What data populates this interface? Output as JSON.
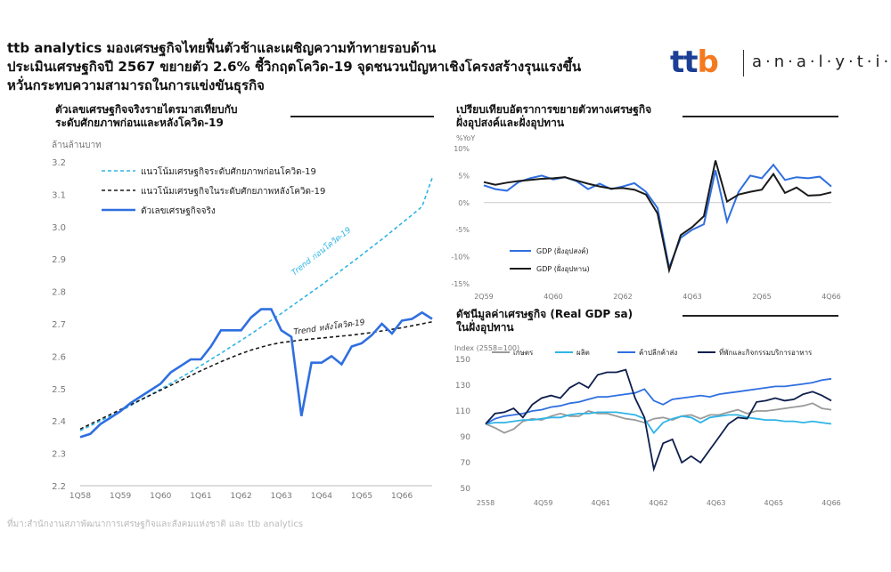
{
  "header": {
    "title_lines": [
      "ttb analytics มองเศรษฐกิจไทยฟื้นตัวช้าและเผชิญความท้าทายรอบด้าน",
      "ประเมินเศรษฐกิจปี 2567 ขยายตัว 2.6% ชี้วิกฤตโควิด-19 จุดชนวนปัญหาเชิงโครงสร้างรุนแรงขึ้น",
      "หวั่นกระทบความสามารถในการแข่งขันธุรกิจ"
    ]
  },
  "logo": {
    "mark": "ttb",
    "word": "analytics"
  },
  "source": "ที่มา:สำนักงานสภาพัฒนาการเศรษฐกิจและสังคมแห่งชาติ และ ttb analytics",
  "colors": {
    "blue": "#2f6fe0",
    "light_blue": "#2fb4e6",
    "black": "#1a1a1a",
    "navy": "#0e1f4d",
    "gray": "#9a9a9a"
  },
  "chart_data": [
    {
      "type": "line",
      "title": "ตัวเลขเศรษฐกิจจริงรายไตรมาสเทียบกับ ระดับศักยภาพก่อนและหลังโควิด-19",
      "title_lines": [
        "ตัวเลขเศรษฐกิจจริงรายไตรมาสเทียบกับ",
        "ระดับศักยภาพก่อนและหลังโควิด-19"
      ],
      "ylabel": "ล้านล้านบาท",
      "ylim": [
        2.2,
        3.2
      ],
      "y_ticks": [
        "3.2",
        "3.1",
        "3.0",
        "2.9",
        "2.8",
        "2.7",
        "2.6",
        "2.5",
        "2.4",
        "2.3",
        "2.2"
      ],
      "x_ticks": [
        "1Q58",
        "1Q59",
        "1Q60",
        "1Q61",
        "1Q62",
        "1Q63",
        "1Q64",
        "1Q65",
        "1Q66"
      ],
      "x": [
        "1Q58",
        "2Q58",
        "3Q58",
        "4Q58",
        "1Q59",
        "2Q59",
        "3Q59",
        "4Q59",
        "1Q60",
        "2Q60",
        "3Q60",
        "4Q60",
        "1Q61",
        "2Q61",
        "3Q61",
        "4Q61",
        "1Q62",
        "2Q62",
        "3Q62",
        "4Q62",
        "1Q63",
        "2Q63",
        "3Q63",
        "4Q63",
        "1Q64",
        "2Q64",
        "3Q64",
        "4Q64",
        "1Q65",
        "2Q65",
        "3Q65",
        "4Q65",
        "1Q66",
        "2Q66",
        "3Q66",
        "4Q66"
      ],
      "legend_position": "top-left",
      "series": [
        {
          "name": "แนวโน้มเศรษฐกิจระดับศักยภาพก่อนโควิด-19",
          "style": "dashed",
          "color": "#2fb4e6",
          "values": [
            2.37,
            2.385,
            2.4,
            2.415,
            2.43,
            2.447,
            2.464,
            2.481,
            2.498,
            2.516,
            2.534,
            2.552,
            2.571,
            2.59,
            2.609,
            2.629,
            2.649,
            2.669,
            2.69,
            2.711,
            2.732,
            2.754,
            2.776,
            2.798,
            2.82,
            2.843,
            2.866,
            2.889,
            2.913,
            2.937,
            2.961,
            2.986,
            3.011,
            3.036,
            3.062,
            3.15
          ]
        },
        {
          "name": "แนวโน้มเศรษฐกิจในระดับศักยภาพหลังโควิด-19",
          "style": "dashed",
          "color": "#1a1a1a",
          "values": [
            2.375,
            2.39,
            2.405,
            2.42,
            2.435,
            2.45,
            2.465,
            2.48,
            2.495,
            2.51,
            2.525,
            2.54,
            2.555,
            2.569,
            2.583,
            2.596,
            2.608,
            2.619,
            2.628,
            2.636,
            2.642,
            2.646,
            2.65,
            2.653,
            2.656,
            2.659,
            2.662,
            2.665,
            2.669,
            2.673,
            2.678,
            2.683,
            2.688,
            2.694,
            2.7,
            2.706
          ]
        },
        {
          "name": "ตัวเลขเศรษฐกิจจริง",
          "style": "solid",
          "color": "#2f6fe0",
          "values": [
            2.35,
            2.36,
            2.39,
            2.41,
            2.43,
            2.455,
            2.475,
            2.495,
            2.515,
            2.55,
            2.57,
            2.59,
            2.59,
            2.63,
            2.68,
            2.68,
            2.68,
            2.72,
            2.745,
            2.745,
            2.68,
            2.66,
            2.415,
            2.58,
            2.58,
            2.6,
            2.575,
            2.63,
            2.64,
            2.665,
            2.7,
            2.67,
            2.71,
            2.715,
            2.735,
            2.715
          ]
        }
      ],
      "annotations": [
        "Trend ก่อนโควิด-19",
        "Trend หลังโควิด-19"
      ]
    },
    {
      "type": "line",
      "title_lines": [
        "เปรียบเทียบอัตราการขยายตัวทางเศรษฐกิจ",
        "ฝั่งอุปสงค์และฝั่งอุปทาน"
      ],
      "ylabel": "%YoY",
      "ylim": [
        -15,
        10
      ],
      "y_ticks": [
        "10%",
        "5%",
        "0%",
        "-5%",
        "-10%",
        "-15%"
      ],
      "x_ticks": [
        "2Q59",
        "4Q60",
        "2Q62",
        "4Q63",
        "2Q65",
        "4Q66"
      ],
      "legend_position": "bottom-left",
      "series": [
        {
          "name": "GDP (ฝั่งอุปสงค์)",
          "color": "#2f6fe0",
          "values": [
            3.2,
            2.5,
            2.2,
            3.8,
            4.5,
            5.0,
            4.3,
            4.7,
            4.0,
            2.5,
            3.5,
            2.5,
            3.0,
            3.6,
            2.0,
            -1.0,
            -12.0,
            -6.5,
            -5.0,
            -4.0,
            6.0,
            -3.5,
            2.0,
            5.0,
            4.5,
            7.0,
            4.2,
            4.7,
            4.5,
            4.8,
            3.0
          ]
        },
        {
          "name": "GDP (ฝั่งอุปทาน)",
          "color": "#1a1a1a",
          "values": [
            3.8,
            3.3,
            3.7,
            4.0,
            4.2,
            4.4,
            4.5,
            4.7,
            4.1,
            3.5,
            3.0,
            2.6,
            2.7,
            2.4,
            1.5,
            -2.0,
            -12.5,
            -6.0,
            -4.5,
            -2.5,
            7.8,
            0.2,
            1.5,
            2.0,
            2.4,
            5.3,
            1.8,
            2.8,
            1.3,
            1.4,
            1.9
          ]
        }
      ]
    },
    {
      "type": "line",
      "title_lines": [
        "ดัชนีมูลค่าเศรษฐกิจ (Real GDP sa)",
        "ในฝั่งอุปทาน"
      ],
      "ylabel": "Index (2558=100)",
      "ylim": [
        50,
        150
      ],
      "y_ticks": [
        "150",
        "130",
        "110",
        "90",
        "70",
        "50"
      ],
      "x_ticks": [
        "2558",
        "4Q59",
        "4Q61",
        "4Q62",
        "4Q63",
        "4Q65",
        "4Q66"
      ],
      "legend_position": "top",
      "series": [
        {
          "name": "เกษตร",
          "color": "#9a9a9a",
          "values": [
            100,
            97,
            93,
            96,
            102,
            104,
            103,
            106,
            108,
            106,
            106,
            110,
            108,
            108,
            106,
            104,
            103,
            101,
            104,
            105,
            103,
            106,
            107,
            104,
            107,
            107,
            109,
            111,
            108,
            110,
            110,
            111,
            112,
            113,
            114,
            116,
            112,
            111
          ]
        },
        {
          "name": "ผลิต",
          "color": "#2fb4e6",
          "values": [
            100,
            101,
            101,
            102,
            103,
            103,
            104,
            105,
            105,
            107,
            108,
            108,
            109,
            109,
            109,
            108,
            107,
            104,
            93,
            101,
            104,
            106,
            105,
            101,
            105,
            106,
            107,
            107,
            105,
            104,
            103,
            103,
            102,
            102,
            101,
            102,
            101,
            100
          ]
        },
        {
          "name": "ค้าปลีกค้าส่ง",
          "color": "#2f6fe0",
          "values": [
            100,
            104,
            106,
            107,
            108,
            110,
            111,
            113,
            114,
            116,
            117,
            119,
            121,
            121,
            122,
            123,
            124,
            127,
            118,
            115,
            119,
            120,
            121,
            122,
            121,
            123,
            124,
            125,
            126,
            127,
            128,
            129,
            129,
            130,
            131,
            132,
            134,
            135
          ]
        },
        {
          "name": "ที่พักและกิจกรรมบริการอาหาร",
          "color": "#0e1f4d",
          "values": [
            100,
            108,
            109,
            112,
            105,
            115,
            120,
            122,
            120,
            128,
            132,
            128,
            138,
            140,
            140,
            142,
            120,
            105,
            65,
            85,
            88,
            70,
            75,
            70,
            80,
            90,
            100,
            105,
            104,
            117,
            118,
            120,
            118,
            119,
            123,
            125,
            122,
            118
          ]
        }
      ]
    }
  ]
}
